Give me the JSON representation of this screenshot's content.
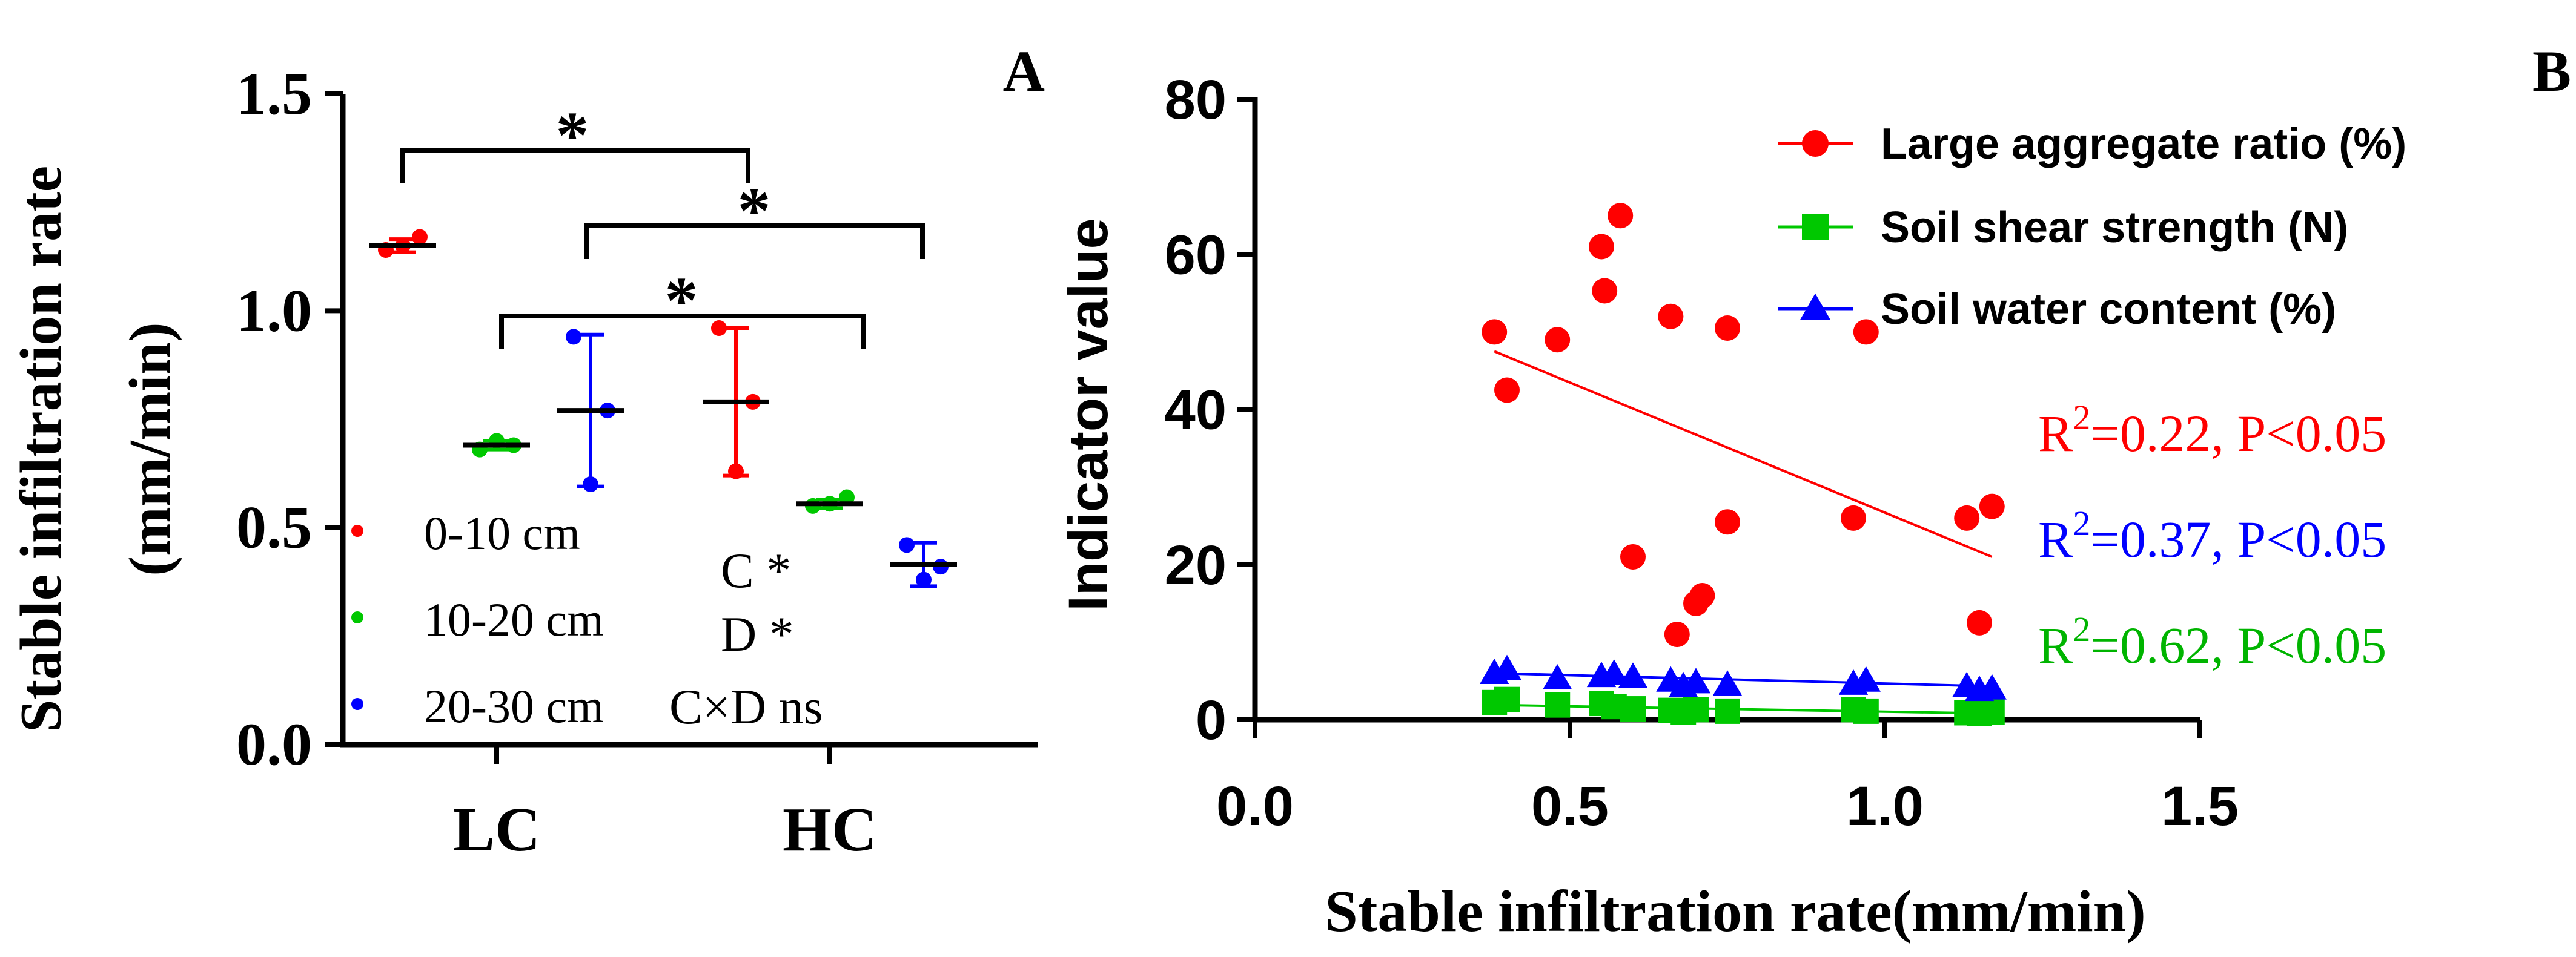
{
  "colors": {
    "red": "#ff0000",
    "green": "#00c800",
    "green_text": "#00b400",
    "blue": "#0000ff",
    "black": "#000000"
  },
  "chart_data": [
    {
      "panel_label": "A",
      "type": "scatter",
      "title": "",
      "xlabel": "",
      "ylabel_line1": "Stable infiltration rate",
      "ylabel_line2": "(mm/min)",
      "ylim": [
        0,
        1.5
      ],
      "yticks": [
        "0.0",
        "0.5",
        "1.0",
        "1.5"
      ],
      "categories": [
        "LC",
        "HC"
      ],
      "series": [
        {
          "name": "0-10 cm",
          "color": "#ff0000",
          "groups": [
            {
              "category": "LC",
              "points": [
                1.14,
                1.17,
                1.15
              ],
              "mean": 1.15,
              "sd": 0.015
            },
            {
              "category": "HC",
              "points": [
                0.96,
                0.79,
                0.63
              ],
              "mean": 0.79,
              "sd": 0.17
            }
          ]
        },
        {
          "name": "10-20 cm",
          "color": "#00c800",
          "groups": [
            {
              "category": "LC",
              "points": [
                0.68,
                0.69,
                0.7
              ],
              "mean": 0.69,
              "sd": 0.01
            },
            {
              "category": "HC",
              "points": [
                0.55,
                0.57,
                0.555
              ],
              "mean": 0.555,
              "sd": 0.01
            }
          ]
        },
        {
          "name": "20-30 cm",
          "color": "#0000ff",
          "groups": [
            {
              "category": "LC",
              "points": [
                0.94,
                0.77,
                0.6
              ],
              "mean": 0.77,
              "sd": 0.175
            },
            {
              "category": "HC",
              "points": [
                0.46,
                0.41,
                0.38
              ],
              "mean": 0.415,
              "sd": 0.05
            }
          ]
        }
      ],
      "significance": [
        {
          "from": "LC 0-10 cm",
          "to": "HC 0-10 cm",
          "label": "*"
        },
        {
          "from": "LC 20-30 cm",
          "to": "HC 20-30 cm",
          "label": "*"
        },
        {
          "from": "LC 10-20 cm",
          "to": "HC 10-20 cm",
          "label": "*"
        }
      ],
      "stats_text": [
        "C *",
        "D *",
        "C×D ns"
      ],
      "legend_placement": "bottom-left"
    },
    {
      "panel_label": "B",
      "type": "scatter",
      "title": "",
      "xlabel": "Stable infiltration rate(mm/min)",
      "ylabel": "Indicator value",
      "xlim": [
        0,
        1.5
      ],
      "ylim": [
        0,
        80
      ],
      "xticks": [
        "0.0",
        "0.5",
        "1.0",
        "1.5"
      ],
      "yticks": [
        "0",
        "20",
        "40",
        "60",
        "80"
      ],
      "series": [
        {
          "name": "Large aggregate ratio (%)",
          "color": "#ff0000",
          "marker": "circle",
          "x": [
            0.38,
            0.4,
            0.48,
            0.55,
            0.555,
            0.58,
            0.6,
            0.66,
            0.67,
            0.7,
            0.71,
            0.75,
            0.75,
            0.95,
            0.97,
            1.13,
            1.15,
            1.17
          ],
          "y": [
            50,
            42.5,
            49,
            61,
            55.3,
            65,
            21,
            52,
            11,
            15,
            16,
            50.5,
            25.5,
            26,
            50,
            26,
            12.5,
            27.5
          ],
          "fit": {
            "x": [
              0.38,
              1.17
            ],
            "y": [
              47.5,
              21
            ]
          }
        },
        {
          "name": "Soil shear strength (N)",
          "color": "#00c800",
          "marker": "square",
          "x": [
            0.38,
            0.4,
            0.48,
            0.55,
            0.57,
            0.6,
            0.66,
            0.68,
            0.7,
            0.75,
            0.95,
            0.97,
            1.13,
            1.15,
            1.17
          ],
          "y": [
            2.2,
            2.6,
            1.9,
            2.1,
            1.7,
            1.4,
            1.2,
            1.0,
            1.3,
            1.1,
            1.3,
            1.1,
            0.9,
            0.8,
            1.0
          ],
          "fit": {
            "x": [
              0.38,
              1.17
            ],
            "y": [
              1.9,
              0.8
            ]
          }
        },
        {
          "name": "Soil water content (%)",
          "color": "#0000ff",
          "marker": "triangle",
          "x": [
            0.38,
            0.4,
            0.48,
            0.55,
            0.57,
            0.6,
            0.66,
            0.68,
            0.7,
            0.75,
            0.95,
            0.97,
            1.13,
            1.15,
            1.17
          ],
          "y": [
            6.0,
            6.5,
            5.3,
            5.6,
            5.9,
            5.5,
            5.0,
            4.3,
            4.8,
            4.5,
            4.6,
            5.0,
            4.3,
            3.8,
            4.0
          ],
          "fit": {
            "x": [
              0.38,
              1.17
            ],
            "y": [
              6.0,
              4.3
            ]
          }
        }
      ],
      "annotations": [
        {
          "prefix": "R",
          "sup": "2",
          "rest": "=0.22, P<0.05",
          "color": "#ff0000"
        },
        {
          "prefix": "R",
          "sup": "2",
          "rest": "=0.37, P<0.05",
          "color": "#0000ff"
        },
        {
          "prefix": "R",
          "sup": "2",
          "rest": "=0.62, P<0.05",
          "color": "#00b400"
        }
      ],
      "legend_placement": "top-right"
    }
  ]
}
